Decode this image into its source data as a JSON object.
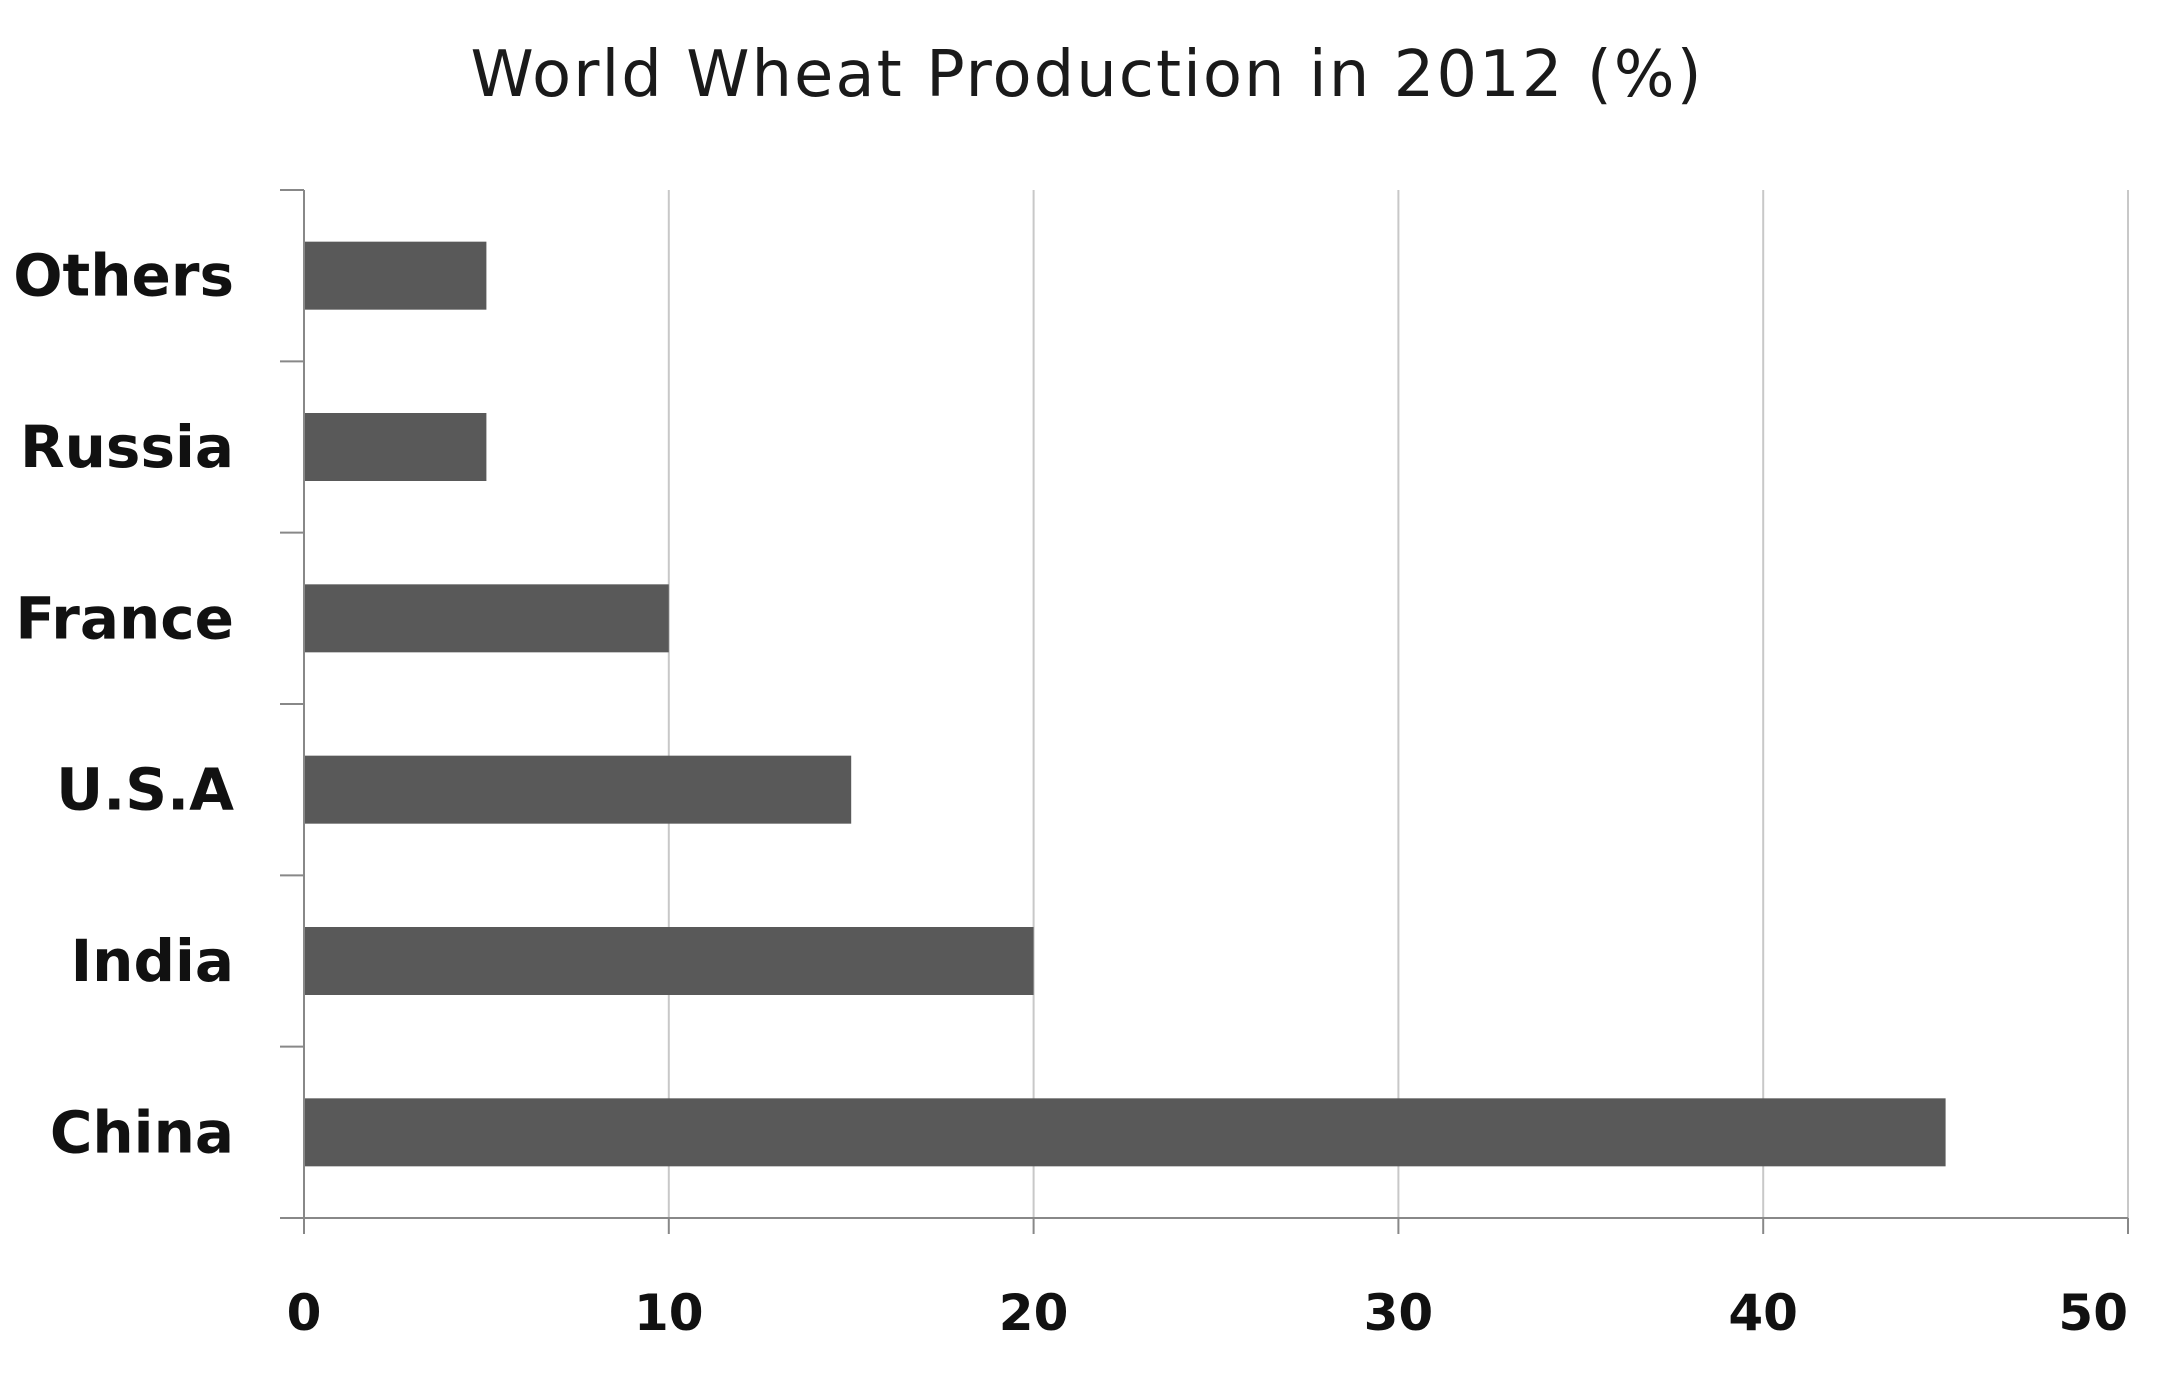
{
  "chart_data": {
    "type": "bar",
    "orientation": "horizontal",
    "title": "World Wheat Production in 2012 (%)",
    "xlabel": "",
    "ylabel": "",
    "categories": [
      "Others",
      "Russia",
      "France",
      "U.S.A",
      "India",
      "China"
    ],
    "values": [
      5,
      5,
      10,
      15,
      20,
      45
    ],
    "xlim": [
      0,
      50
    ],
    "x_ticks": [
      0,
      10,
      20,
      30,
      40,
      50
    ],
    "grid": "vertical",
    "legend": "none",
    "bar_color": "#595959",
    "grid_color": "#c8c8c8",
    "axis_color": "#888888"
  }
}
